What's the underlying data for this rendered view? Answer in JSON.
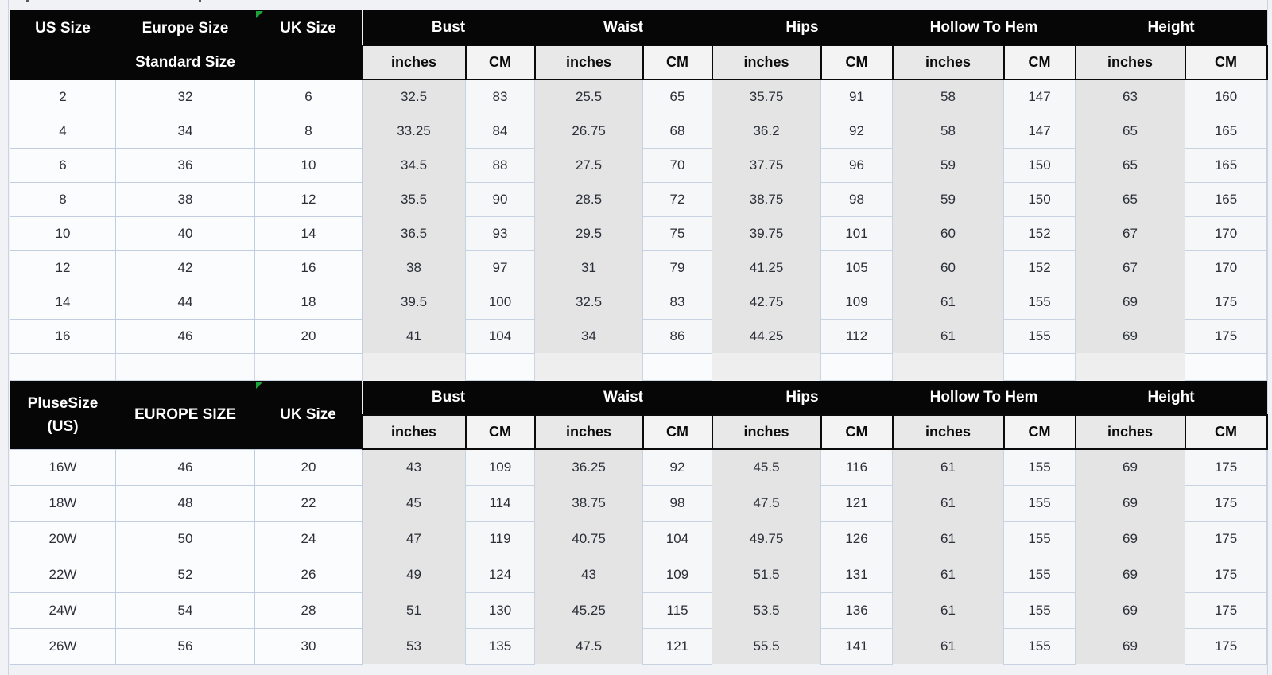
{
  "colors": {
    "header_bg": "#060606",
    "header_text": "#ffffff",
    "subheader_inches_bg": "#e8e8e8",
    "subheader_cm_bg": "#f3f3f3",
    "band_gray": "#e4e4e5",
    "cell_white": "#fbfcfd",
    "gridline": "#c8d3e2",
    "marker_green": "#1ca53b",
    "page_bg": "#f1f2f5"
  },
  "group_labels": [
    "Bust",
    "Waist",
    "Hips",
    "Hollow To Hem",
    "Height"
  ],
  "sub_labels": [
    "inches",
    "CM"
  ],
  "tables": [
    {
      "id": "standard",
      "size_headers": [
        {
          "line1": "US Size",
          "line2": ""
        },
        {
          "line1": "Europe Size",
          "line2": "Standard Size"
        },
        {
          "line1": "UK Size",
          "line2": ""
        }
      ],
      "rows": [
        [
          "2",
          "32",
          "6",
          "32.5",
          "83",
          "25.5",
          "65",
          "35.75",
          "91",
          "58",
          "147",
          "63",
          "160"
        ],
        [
          "4",
          "34",
          "8",
          "33.25",
          "84",
          "26.75",
          "68",
          "36.2",
          "92",
          "58",
          "147",
          "65",
          "165"
        ],
        [
          "6",
          "36",
          "10",
          "34.5",
          "88",
          "27.5",
          "70",
          "37.75",
          "96",
          "59",
          "150",
          "65",
          "165"
        ],
        [
          "8",
          "38",
          "12",
          "35.5",
          "90",
          "28.5",
          "72",
          "38.75",
          "98",
          "59",
          "150",
          "65",
          "165"
        ],
        [
          "10",
          "40",
          "14",
          "36.5",
          "93",
          "29.5",
          "75",
          "39.75",
          "101",
          "60",
          "152",
          "67",
          "170"
        ],
        [
          "12",
          "42",
          "16",
          "38",
          "97",
          "31",
          "79",
          "41.25",
          "105",
          "60",
          "152",
          "67",
          "170"
        ],
        [
          "14",
          "44",
          "18",
          "39.5",
          "100",
          "32.5",
          "83",
          "42.75",
          "109",
          "61",
          "155",
          "69",
          "175"
        ],
        [
          "16",
          "46",
          "20",
          "41",
          "104",
          "34",
          "86",
          "44.25",
          "112",
          "61",
          "155",
          "69",
          "175"
        ]
      ]
    },
    {
      "id": "plus",
      "size_headers": [
        {
          "line1": "PluseSize",
          "line2": "(US)"
        },
        {
          "line1": "EUROPE SIZE",
          "line2": ""
        },
        {
          "line1": "UK Size",
          "line2": ""
        }
      ],
      "rows": [
        [
          "16W",
          "46",
          "20",
          "43",
          "109",
          "36.25",
          "92",
          "45.5",
          "116",
          "61",
          "155",
          "69",
          "175"
        ],
        [
          "18W",
          "48",
          "22",
          "45",
          "114",
          "38.75",
          "98",
          "47.5",
          "121",
          "61",
          "155",
          "69",
          "175"
        ],
        [
          "20W",
          "50",
          "24",
          "47",
          "119",
          "40.75",
          "104",
          "49.75",
          "126",
          "61",
          "155",
          "69",
          "175"
        ],
        [
          "22W",
          "52",
          "26",
          "49",
          "124",
          "43",
          "109",
          "51.5",
          "131",
          "61",
          "155",
          "69",
          "175"
        ],
        [
          "24W",
          "54",
          "28",
          "51",
          "130",
          "45.25",
          "115",
          "53.5",
          "136",
          "61",
          "155",
          "69",
          "175"
        ],
        [
          "26W",
          "56",
          "30",
          "53",
          "135",
          "47.5",
          "121",
          "55.5",
          "141",
          "61",
          "155",
          "69",
          "175"
        ]
      ]
    }
  ]
}
